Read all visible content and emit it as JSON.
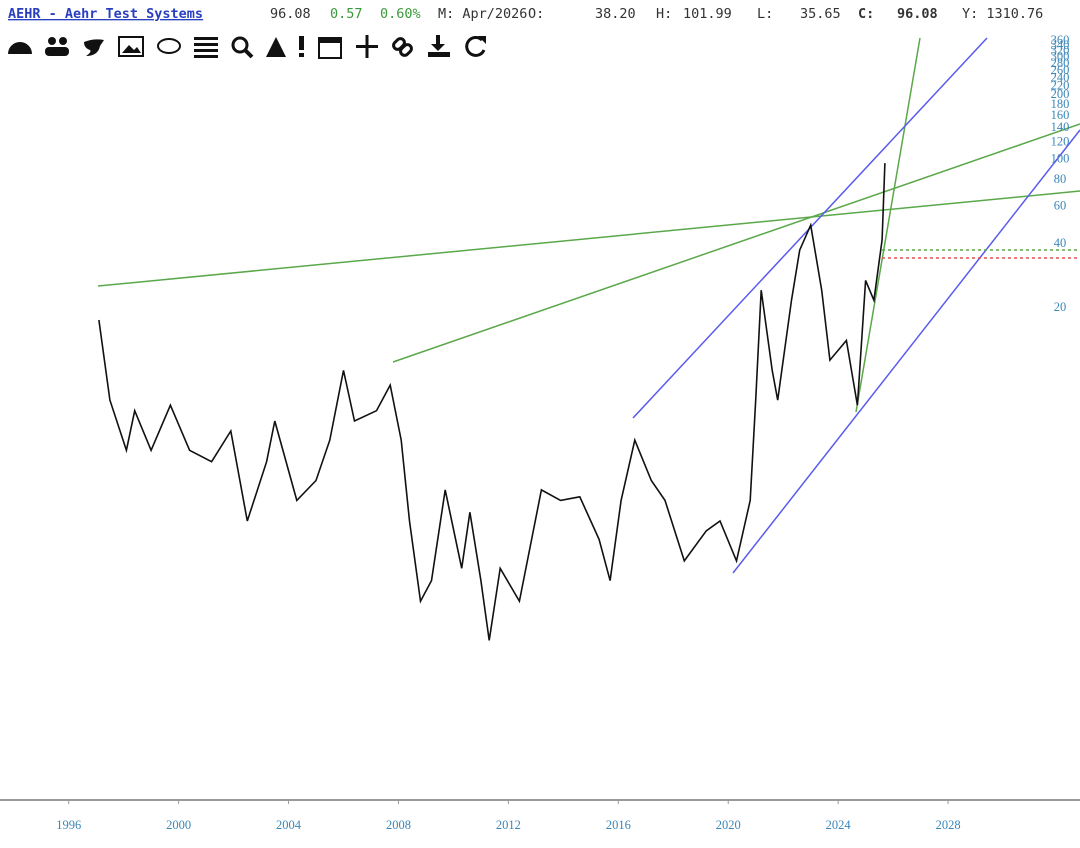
{
  "header": {
    "symbol": "AEHR - Aehr Test Systems",
    "last": "96.08",
    "change": "0.57",
    "change_pct": "0.60%",
    "period": "M: Apr/2026",
    "open_label": "O:",
    "open": "38.20",
    "high_label": "H:",
    "high": "101.99",
    "low_label": "L:",
    "low": "35.65",
    "close_label": "C:",
    "close": "96.08",
    "year": "Y: 1310.76"
  },
  "chart_data": {
    "type": "line",
    "color": "#111111",
    "log_y": true,
    "grid": false,
    "x": [
      1997.1,
      1997.5,
      1998.1,
      1998.4,
      1999.0,
      1999.7,
      2000.4,
      2001.2,
      2001.9,
      2002.5,
      2003.2,
      2003.5,
      2004.3,
      2005.0,
      2005.5,
      2006.0,
      2006.4,
      2007.2,
      2007.7,
      2008.1,
      2008.4,
      2008.8,
      2009.2,
      2009.7,
      2010.3,
      2010.6,
      2011.0,
      2011.3,
      2011.7,
      2012.4,
      2013.2,
      2013.9,
      2014.6,
      2015.3,
      2015.7,
      2016.1,
      2016.6,
      2017.2,
      2017.7,
      2018.4,
      2019.2,
      2019.7,
      2020.3,
      2020.8,
      2021.0,
      2021.2,
      2021.6,
      2021.8,
      2022.3,
      2022.6,
      2023.0,
      2023.4,
      2023.7,
      2024.3,
      2024.7,
      2025.0,
      2025.3,
      2025.6,
      2025.7
    ],
    "values": [
      17.6,
      7.4,
      4.3,
      6.6,
      4.3,
      7.0,
      4.3,
      3.8,
      5.3,
      2.0,
      3.8,
      5.9,
      2.5,
      3.1,
      4.8,
      10.2,
      5.9,
      6.6,
      8.7,
      4.8,
      2.0,
      0.84,
      1.05,
      2.8,
      1.2,
      2.2,
      1.05,
      0.55,
      1.2,
      0.84,
      2.8,
      2.5,
      2.6,
      1.64,
      1.05,
      2.5,
      4.8,
      3.1,
      2.5,
      1.3,
      1.8,
      2.0,
      1.3,
      2.5,
      7.4,
      24.3,
      10.2,
      7.4,
      21.8,
      37.5,
      49.1,
      24.3,
      11.4,
      14.1,
      7.0,
      27.0,
      21.8,
      41.9,
      96.08
    ],
    "xlim": [
      1993.5,
      2032.8
    ],
    "xticks": [
      1996,
      2000,
      2004,
      2008,
      2012,
      2016,
      2020,
      2024,
      2028
    ],
    "ylim": [
      0.1,
      384
    ],
    "yticks": [
      20,
      40,
      60,
      80,
      100,
      120,
      140,
      160,
      180,
      200,
      220,
      240,
      260,
      280,
      300,
      320,
      340,
      360
    ]
  }
}
